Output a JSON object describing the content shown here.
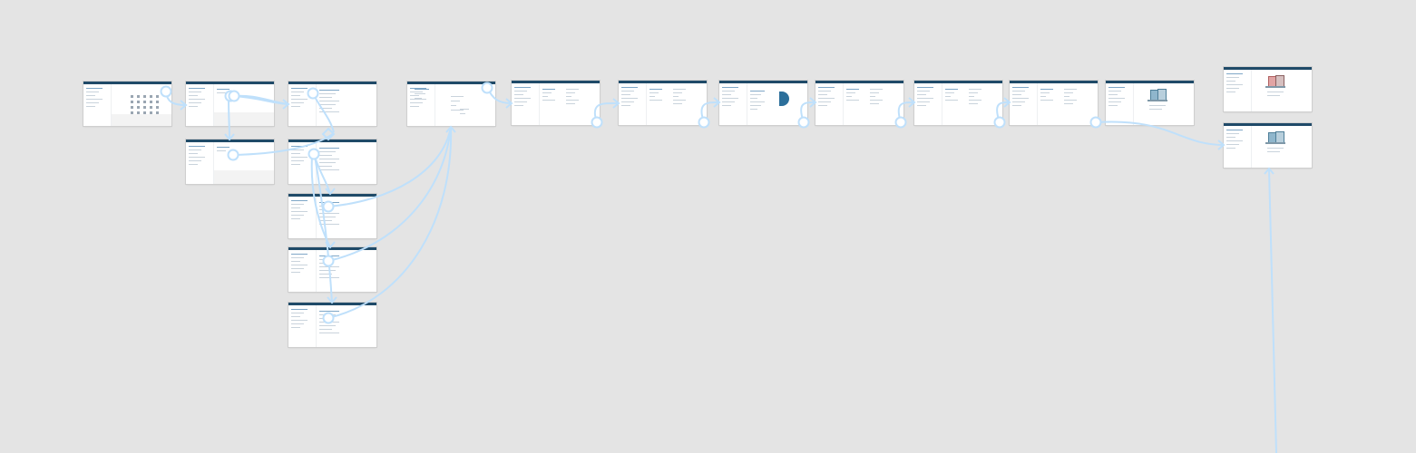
{
  "board": {
    "background": "#e4e4e4",
    "link_color": "#bfe0fb",
    "frame_header_color": "#1f4a68"
  },
  "screens": [
    {
      "id": "s1",
      "variant": "grid"
    },
    {
      "id": "s2",
      "variant": "split"
    },
    {
      "id": "s3",
      "variant": "list"
    },
    {
      "id": "s4",
      "variant": "split"
    },
    {
      "id": "s5",
      "variant": "list"
    },
    {
      "id": "s6",
      "variant": "list"
    },
    {
      "id": "s7",
      "variant": "list"
    },
    {
      "id": "s8",
      "variant": "list"
    },
    {
      "id": "s9",
      "variant": "form"
    },
    {
      "id": "s10",
      "variant": "columns"
    },
    {
      "id": "s11",
      "variant": "columns"
    },
    {
      "id": "s12",
      "variant": "chart"
    },
    {
      "id": "s13",
      "variant": "columns"
    },
    {
      "id": "s14",
      "variant": "columns"
    },
    {
      "id": "s15",
      "variant": "columns"
    },
    {
      "id": "s16",
      "variant": "illustration"
    },
    {
      "id": "s17",
      "variant": "illustration-red"
    },
    {
      "id": "s18",
      "variant": "illustration"
    }
  ],
  "links": [
    {
      "from": "s1",
      "to": "s2"
    },
    {
      "from": "s2",
      "to": "s3"
    },
    {
      "from": "s2",
      "to": "s4"
    },
    {
      "from": "s3",
      "to": "s5"
    },
    {
      "from": "s4",
      "to": "s5"
    },
    {
      "from": "s5",
      "to": "s6"
    },
    {
      "from": "s6",
      "to": "s7"
    },
    {
      "from": "s7",
      "to": "s8"
    },
    {
      "from": "s6",
      "to": "s9"
    },
    {
      "from": "s7",
      "to": "s9"
    },
    {
      "from": "s8",
      "to": "s9"
    },
    {
      "from": "s9",
      "to": "s10"
    },
    {
      "from": "s10",
      "to": "s11"
    },
    {
      "from": "s11",
      "to": "s12"
    },
    {
      "from": "s12",
      "to": "s13"
    },
    {
      "from": "s13",
      "to": "s14"
    },
    {
      "from": "s14",
      "to": "s15"
    },
    {
      "from": "s15",
      "to": "s18"
    },
    {
      "from": "external",
      "to": "s18"
    }
  ]
}
